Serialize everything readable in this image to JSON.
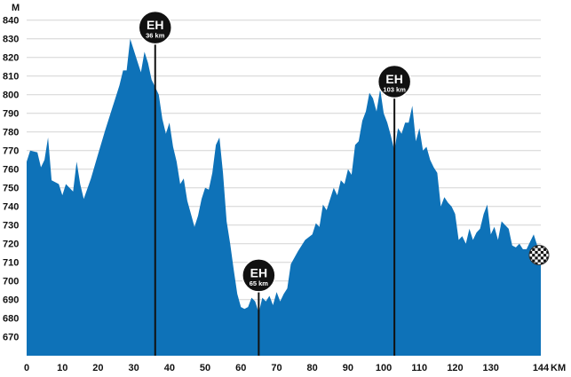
{
  "chart_data": {
    "type": "area",
    "title": "",
    "xlabel": "",
    "ylabel": "",
    "x_unit": "KM",
    "y_unit": "M",
    "xlim": [
      0,
      144
    ],
    "ylim": [
      660,
      845
    ],
    "x_ticks": [
      0,
      10,
      20,
      30,
      40,
      50,
      60,
      70,
      80,
      90,
      100,
      110,
      120,
      130,
      144
    ],
    "y_ticks": [
      670,
      680,
      690,
      700,
      710,
      720,
      730,
      740,
      750,
      760,
      770,
      780,
      790,
      800,
      810,
      820,
      830,
      840
    ],
    "grid": true,
    "fill_color": "#0e72b8",
    "series": [
      {
        "points": [
          [
            0,
            764
          ],
          [
            1,
            770
          ],
          [
            3,
            769
          ],
          [
            4,
            761
          ],
          [
            5,
            765
          ],
          [
            6,
            777
          ],
          [
            7,
            754
          ],
          [
            8,
            753
          ],
          [
            9,
            752
          ],
          [
            10,
            746
          ],
          [
            11,
            752
          ],
          [
            12,
            750
          ],
          [
            13,
            748
          ],
          [
            14,
            764
          ],
          [
            15,
            752
          ],
          [
            16,
            744
          ],
          [
            18,
            755
          ],
          [
            20,
            768
          ],
          [
            22,
            781
          ],
          [
            24,
            793
          ],
          [
            26,
            805
          ],
          [
            27,
            813
          ],
          [
            28,
            813
          ],
          [
            29,
            830
          ],
          [
            30,
            824
          ],
          [
            31,
            818
          ],
          [
            32,
            812
          ],
          [
            33,
            823
          ],
          [
            34,
            817
          ],
          [
            35,
            808
          ],
          [
            36,
            804
          ],
          [
            37,
            800
          ],
          [
            38,
            787
          ],
          [
            39,
            779
          ],
          [
            40,
            785
          ],
          [
            41,
            772
          ],
          [
            42,
            764
          ],
          [
            43,
            752
          ],
          [
            44,
            755
          ],
          [
            45,
            743
          ],
          [
            46,
            736
          ],
          [
            47,
            729
          ],
          [
            48,
            735
          ],
          [
            49,
            744
          ],
          [
            50,
            750
          ],
          [
            51,
            749
          ],
          [
            52,
            758
          ],
          [
            53,
            773
          ],
          [
            54,
            777
          ],
          [
            55,
            758
          ],
          [
            56,
            732
          ],
          [
            57,
            720
          ],
          [
            58,
            706
          ],
          [
            59,
            693
          ],
          [
            60,
            686
          ],
          [
            61,
            685
          ],
          [
            62,
            686
          ],
          [
            63,
            691
          ],
          [
            64,
            689
          ],
          [
            65,
            683
          ],
          [
            66,
            691
          ],
          [
            67,
            689
          ],
          [
            68,
            692
          ],
          [
            69,
            687
          ],
          [
            70,
            694
          ],
          [
            71,
            689
          ],
          [
            72,
            693
          ],
          [
            73,
            696
          ],
          [
            74,
            709
          ],
          [
            76,
            716
          ],
          [
            78,
            722
          ],
          [
            80,
            725
          ],
          [
            81,
            731
          ],
          [
            82,
            729
          ],
          [
            83,
            741
          ],
          [
            84,
            738
          ],
          [
            85,
            744
          ],
          [
            86,
            750
          ],
          [
            87,
            746
          ],
          [
            88,
            754
          ],
          [
            89,
            752
          ],
          [
            90,
            760
          ],
          [
            91,
            757
          ],
          [
            92,
            773
          ],
          [
            93,
            775
          ],
          [
            94,
            786
          ],
          [
            95,
            791
          ],
          [
            96,
            801
          ],
          [
            97,
            798
          ],
          [
            98,
            791
          ],
          [
            99,
            803
          ],
          [
            100,
            790
          ],
          [
            101,
            785
          ],
          [
            102,
            778
          ],
          [
            103,
            770
          ],
          [
            104,
            782
          ],
          [
            105,
            779
          ],
          [
            106,
            785
          ],
          [
            107,
            785
          ],
          [
            108,
            794
          ],
          [
            109,
            775
          ],
          [
            110,
            782
          ],
          [
            111,
            770
          ],
          [
            112,
            772
          ],
          [
            113,
            765
          ],
          [
            114,
            761
          ],
          [
            115,
            758
          ],
          [
            116,
            740
          ],
          [
            117,
            745
          ],
          [
            118,
            742
          ],
          [
            119,
            740
          ],
          [
            120,
            736
          ],
          [
            121,
            722
          ],
          [
            122,
            724
          ],
          [
            123,
            720
          ],
          [
            124,
            728
          ],
          [
            125,
            722
          ],
          [
            126,
            726
          ],
          [
            127,
            728
          ],
          [
            128,
            736
          ],
          [
            129,
            741
          ],
          [
            130,
            725
          ],
          [
            131,
            729
          ],
          [
            132,
            722
          ],
          [
            133,
            732
          ],
          [
            134,
            730
          ],
          [
            135,
            728
          ],
          [
            136,
            719
          ],
          [
            137,
            718
          ],
          [
            138,
            720
          ],
          [
            139,
            717
          ],
          [
            140,
            717
          ],
          [
            141,
            721
          ],
          [
            142,
            725
          ],
          [
            143,
            719
          ],
          [
            144,
            712
          ]
        ]
      }
    ],
    "markers": [
      {
        "code": "EH",
        "km": 36,
        "label": "36 km",
        "top_elev": 836
      },
      {
        "code": "EH",
        "km": 65,
        "label": "65 km",
        "top_elev": 703
      },
      {
        "code": "EH",
        "km": 103,
        "label": "103 km",
        "top_elev": 807
      }
    ],
    "finish_marker": "checkered-flag"
  }
}
